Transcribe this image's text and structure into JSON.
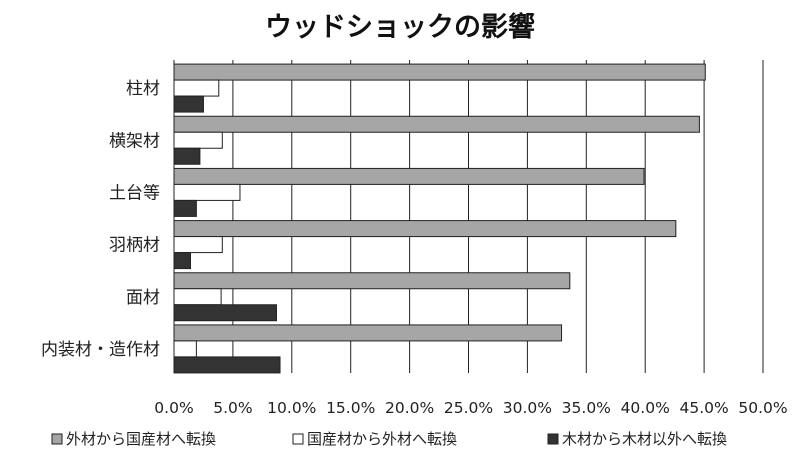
{
  "chart_data": {
    "type": "bar",
    "orientation": "horizontal",
    "title": "ウッドショックの影響",
    "categories": [
      "柱材",
      "横架材",
      "土台等",
      "羽柄材",
      "面材",
      "内装材・造作材"
    ],
    "series": [
      {
        "name": "外材から国産材へ転換",
        "color": "#a6a6a6",
        "values": [
          45.1,
          44.6,
          39.9,
          42.6,
          33.6,
          32.9
        ]
      },
      {
        "name": "国産材から外材へ転換",
        "color": "#ffffff",
        "values": [
          3.8,
          4.1,
          5.6,
          4.1,
          4.0,
          1.9
        ]
      },
      {
        "name": "木材から木材以外へ転換",
        "color": "#333333",
        "values": [
          2.5,
          2.2,
          1.9,
          1.4,
          8.7,
          9.0
        ]
      }
    ],
    "xlim": [
      0,
      50
    ],
    "ticks": [
      "0.0%",
      "5.0%",
      "10.0%",
      "15.0%",
      "20.0%",
      "25.0%",
      "30.0%",
      "35.0%",
      "40.0%",
      "45.0%",
      "50.0%"
    ],
    "grid": true,
    "legend_position": "bottom"
  }
}
